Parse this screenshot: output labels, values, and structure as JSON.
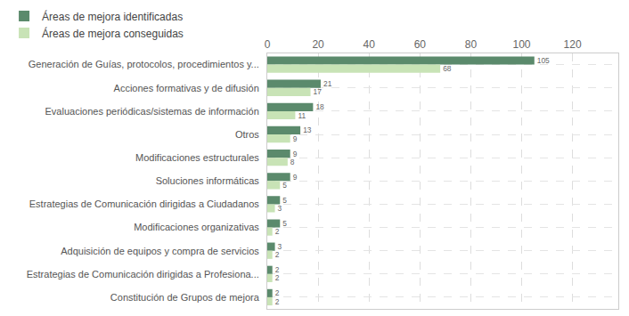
{
  "chart_data": {
    "type": "bar",
    "orientation": "horizontal",
    "categories": [
      "Generación de Guías, protocolos, procedimientos y...",
      "Acciones formativas y de difusión",
      "Evaluaciones periódicas/sistemas de información",
      "Otros",
      "Modificaciones estructurales",
      "Soluciones informáticas",
      "Estrategias de Comunicación dirigidas a Ciudadanos",
      "Modificaciones organizativas",
      "Adquisición de equipos y compra de servicios",
      "Estrategias de Comunicación dirigidas a Profesiona...",
      "Constitución de Grupos de mejora"
    ],
    "series": [
      {
        "name": "Áreas de mejora identificadas",
        "color": "#5b8a6c",
        "values": [
          105,
          21,
          18,
          13,
          9,
          9,
          5,
          5,
          3,
          2,
          2
        ]
      },
      {
        "name": "Áreas de mejora conseguidas",
        "color": "#c8e3b6",
        "values": [
          68,
          17,
          11,
          9,
          8,
          5,
          3,
          2,
          2,
          2,
          2
        ]
      }
    ],
    "xlim": [
      0,
      138
    ],
    "xticks": [
      0,
      20,
      40,
      60,
      80,
      100,
      120
    ],
    "grid": true,
    "legend": "top-left",
    "data_labels": true
  }
}
